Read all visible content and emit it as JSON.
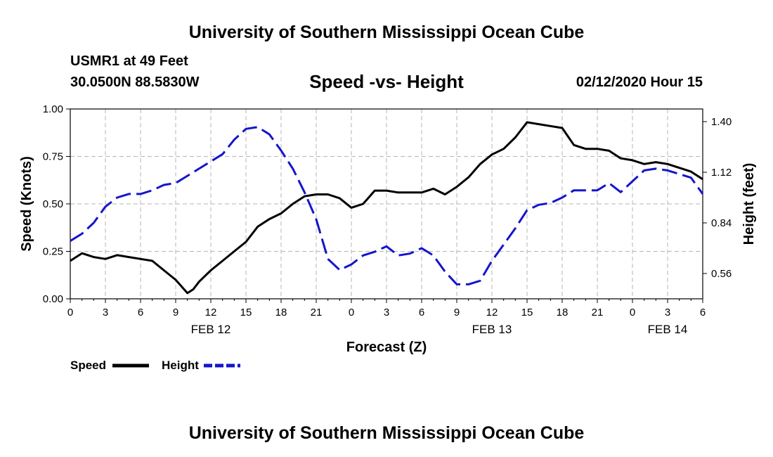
{
  "header": {
    "title": "University of Southern Mississippi Ocean Cube",
    "station": "USMR1 at 49 Feet",
    "location": "30.0500N 88.5830W",
    "subtitle": "Speed -vs- Height",
    "timestamp": "02/12/2020 Hour 15"
  },
  "footer": {
    "title": "University of Southern Mississippi Ocean Cube"
  },
  "legend": {
    "speed_label": "Speed",
    "height_label": "Height"
  },
  "chart_data": {
    "type": "line",
    "title": "Speed -vs- Height",
    "xlabel": "Forecast (Z)",
    "ylabel": "Speed (Knots)",
    "y2label": "Height (feet)",
    "x_unit": "hours from 00Z FEB 12",
    "xlim": [
      0,
      54
    ],
    "ylim": [
      0,
      1.0
    ],
    "y2lim": [
      0.42,
      1.47
    ],
    "xticks": [
      0,
      3,
      6,
      9,
      12,
      15,
      18,
      21,
      24,
      27,
      30,
      33,
      36,
      39,
      42,
      45,
      48,
      51,
      54
    ],
    "xtick_labels": [
      "0",
      "3",
      "6",
      "9",
      "12",
      "15",
      "18",
      "21",
      "0",
      "3",
      "6",
      "9",
      "12",
      "15",
      "18",
      "21",
      "0",
      "3",
      "6"
    ],
    "day_labels": [
      {
        "x": 12,
        "label": "FEB 12"
      },
      {
        "x": 36,
        "label": "FEB 13"
      },
      {
        "x": 51,
        "label": "FEB 14"
      }
    ],
    "yticks": [
      0,
      0.25,
      0.5,
      0.75,
      1.0
    ],
    "ytick_labels": [
      "0.00",
      "0.25",
      "0.50",
      "0.75",
      "1.00"
    ],
    "y2ticks": [
      0.56,
      0.84,
      1.12,
      1.4
    ],
    "y2tick_labels": [
      "0.56",
      "0.84",
      "1.12",
      "1.40"
    ],
    "grid": true,
    "legend_position": "bottom-left",
    "series": [
      {
        "name": "Speed",
        "axis": "left",
        "color": "#000000",
        "style": "solid",
        "x": [
          0,
          1,
          2,
          3,
          4,
          5,
          6,
          7,
          8,
          9,
          10,
          10.5,
          11,
          12,
          13,
          14,
          15,
          16,
          17,
          18,
          19,
          20,
          21,
          22,
          23,
          24,
          25,
          26,
          27,
          28,
          29,
          30,
          31,
          32,
          33,
          34,
          35,
          36,
          37,
          38,
          39,
          40,
          41,
          42,
          43,
          44,
          45,
          46,
          47,
          48,
          49,
          50,
          51,
          52,
          53,
          54
        ],
        "values": [
          0.2,
          0.24,
          0.22,
          0.21,
          0.23,
          0.22,
          0.21,
          0.2,
          0.15,
          0.1,
          0.03,
          0.05,
          0.09,
          0.15,
          0.2,
          0.25,
          0.3,
          0.38,
          0.42,
          0.45,
          0.5,
          0.54,
          0.55,
          0.55,
          0.53,
          0.48,
          0.5,
          0.57,
          0.57,
          0.56,
          0.56,
          0.56,
          0.58,
          0.55,
          0.59,
          0.64,
          0.71,
          0.76,
          0.79,
          0.85,
          0.93,
          0.92,
          0.91,
          0.9,
          0.81,
          0.79,
          0.79,
          0.78,
          0.74,
          0.73,
          0.71,
          0.72,
          0.71,
          0.69,
          0.67,
          0.63
        ]
      },
      {
        "name": "Height",
        "axis": "right",
        "color": "#1515cc",
        "style": "dashed",
        "x": [
          0,
          1,
          2,
          3,
          4,
          5,
          6,
          7,
          8,
          9,
          10,
          11,
          12,
          13,
          14,
          15,
          16,
          17,
          18,
          19,
          20,
          21,
          22,
          23,
          24,
          25,
          26,
          27,
          28,
          29,
          30,
          31,
          32,
          33,
          34,
          35,
          36,
          37,
          38,
          39,
          40,
          41,
          42,
          43,
          44,
          45,
          46,
          47,
          48,
          49,
          50,
          51,
          52,
          53,
          54
        ],
        "values": [
          0.74,
          0.78,
          0.84,
          0.93,
          0.98,
          1.0,
          1.0,
          1.02,
          1.05,
          1.06,
          1.1,
          1.14,
          1.18,
          1.22,
          1.3,
          1.36,
          1.37,
          1.33,
          1.24,
          1.14,
          1.01,
          0.86,
          0.64,
          0.58,
          0.61,
          0.66,
          0.68,
          0.71,
          0.66,
          0.67,
          0.7,
          0.66,
          0.57,
          0.5,
          0.5,
          0.52,
          0.63,
          0.72,
          0.81,
          0.91,
          0.94,
          0.95,
          0.98,
          1.02,
          1.02,
          1.02,
          1.06,
          1.01,
          1.07,
          1.13,
          1.14,
          1.13,
          1.11,
          1.09,
          1.0
        ]
      }
    ]
  }
}
